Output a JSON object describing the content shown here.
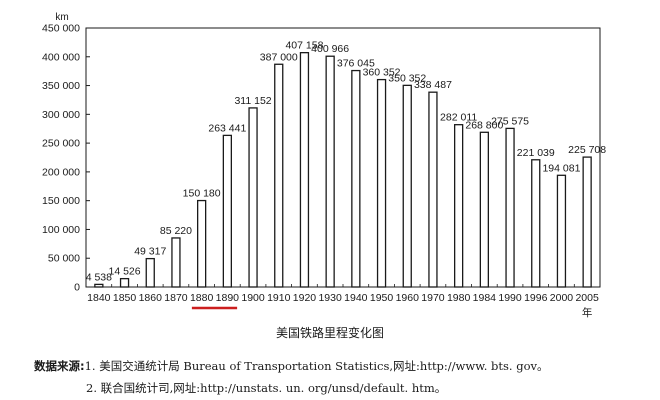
{
  "chart_data": {
    "type": "bar",
    "y_unit": "km",
    "ylim": [
      0,
      450000
    ],
    "y_ticks": [
      0,
      50000,
      100000,
      150000,
      200000,
      250000,
      300000,
      350000,
      400000,
      450000
    ],
    "y_tick_labels": [
      "0",
      "50 000",
      "100 000",
      "150 000",
      "200 000",
      "250 000",
      "300 000",
      "350 000",
      "400 000",
      "450 000"
    ],
    "categories": [
      "1840",
      "1850",
      "1860",
      "1870",
      "1880",
      "1890",
      "1900",
      "1910",
      "1920",
      "1930",
      "1940",
      "1950",
      "1960",
      "1970",
      "1980",
      "1984",
      "1990",
      "1996",
      "2000",
      "2005"
    ],
    "values": [
      4538,
      14526,
      49317,
      85220,
      150180,
      263441,
      311152,
      387000,
      407158,
      400966,
      376045,
      360352,
      350352,
      338487,
      282011,
      268800,
      275575,
      221039,
      194081,
      225708
    ],
    "value_labels": [
      "4 538",
      "14 526",
      "49 317",
      "85 220",
      "150 180",
      "263 441",
      "311 152",
      "387 000",
      "407 158",
      "400 966",
      "376 045",
      "360 352",
      "350 352",
      "338 487",
      "282 011",
      "268 800",
      "275 575",
      "221 039",
      "194 081",
      "225 708"
    ],
    "x_suffix": "年",
    "highlight_range": [
      "1880",
      "1890"
    ],
    "highlight_color": "#cc1f1f",
    "bar_fill": "#ffffff",
    "bar_stroke": "#1a1a1a",
    "grid": false,
    "title": "美国铁路里程变化图"
  },
  "source": {
    "label": "数据来源:",
    "line1": "1. 美国交通统计局 Bureau of Transportation Statistics,网址:http://www. bts. gov。",
    "line2": "2. 联合国统计司,网址:http://unstats. un. org/unsd/default. htm。"
  }
}
